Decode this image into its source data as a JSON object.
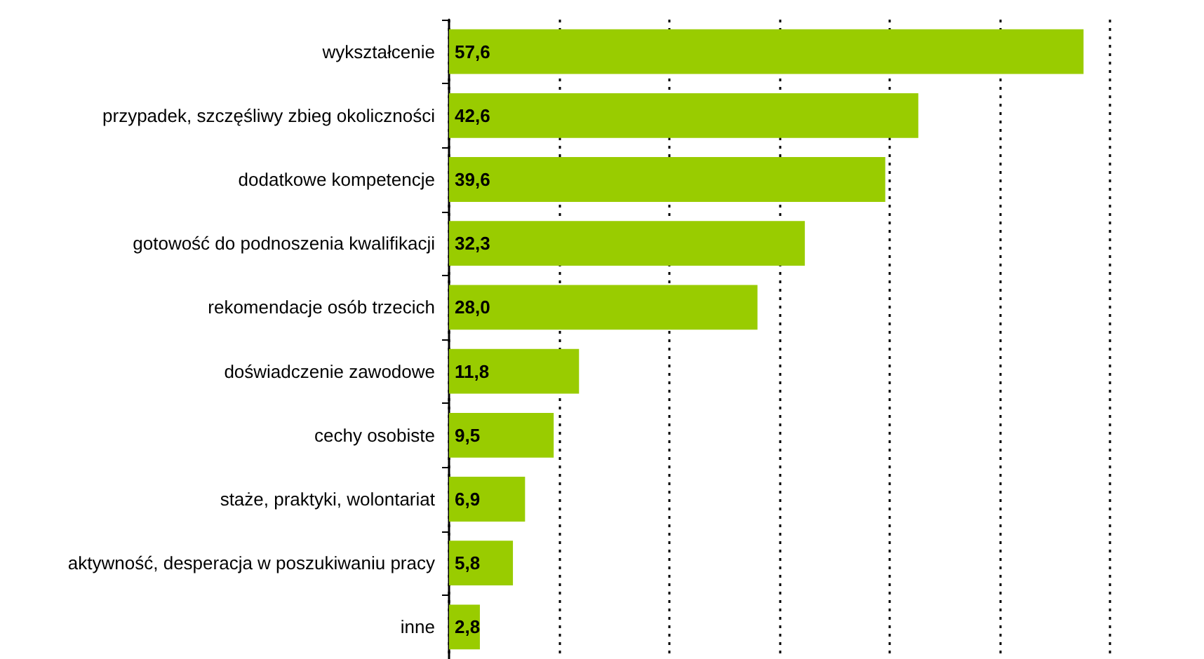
{
  "chart_data": {
    "type": "bar",
    "orientation": "horizontal",
    "categories": [
      "wykształcenie",
      "przypadek, szczęśliwy zbieg okoliczności",
      "dodatkowe kompetencje",
      "gotowość do podnoszenia kwalifikacji",
      "rekomendacje osób trzecich",
      "doświadczenie zawodowe",
      "cechy osobiste",
      "staże, praktyki, wolontariat",
      "aktywność, desperacja w poszukiwaniu pracy",
      "inne"
    ],
    "values": [
      57.6,
      42.6,
      39.6,
      32.3,
      28.0,
      11.8,
      9.5,
      6.9,
      5.8,
      2.8
    ],
    "value_labels": [
      "57,6",
      "42,6",
      "39,6",
      "32,3",
      "28,0",
      "11,8",
      "9,5",
      "6,9",
      "5,8",
      "2,8"
    ],
    "color": "#99cc00",
    "xlim": [
      0,
      60
    ],
    "xticks": [
      {
        "value": 0,
        "label": null
      },
      {
        "value": 10,
        "label": null
      },
      {
        "value": 20,
        "label": null
      },
      {
        "value": 30,
        "label": null
      },
      {
        "value": 40,
        "label": null
      },
      {
        "value": 50,
        "label": null
      },
      {
        "value": 60,
        "label": null
      }
    ],
    "tick_labels": "y",
    "grid": "x"
  }
}
